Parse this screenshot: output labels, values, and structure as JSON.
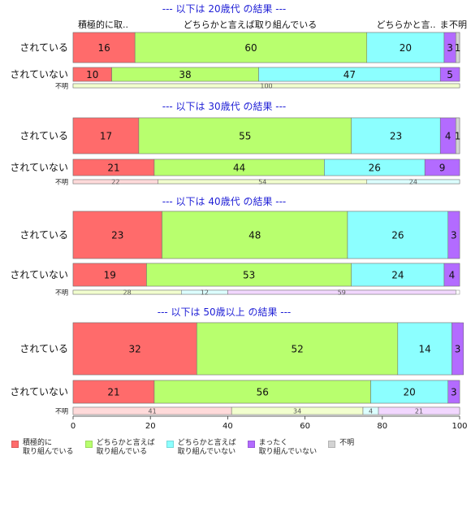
{
  "chart_data": {
    "type": "bar",
    "orientation": "horizontal",
    "stacked": "100%",
    "xlim": [
      0,
      100
    ],
    "xticks": [
      "0",
      "20",
      "40",
      "60",
      "80",
      "100"
    ],
    "categories": [
      "積極的に\n取り組んでいる",
      "どちらかと言えば\n取り組んでいる",
      "どちらかと言えば\n取り組んでいない",
      "まったく\n取り組んでいない",
      "不明"
    ],
    "colors": [
      "#ff6b6b",
      "#b8ff6e",
      "#8cffff",
      "#b36bff",
      "#d3d3d3"
    ],
    "light_colors": [
      "#ffdada",
      "#f2ffce",
      "#dcffff",
      "#f2d7ff",
      "#eeeeee"
    ],
    "legend_position": "bottom",
    "top_category_labels": [
      "積極的に取..",
      "どちらかと言えば取り組んでいる",
      "どちらかと言..",
      "ま",
      "不明"
    ],
    "panels": [
      {
        "title": "--- 以下は 20歳代 の結果 ---",
        "rows": [
          {
            "label": "されている",
            "values": [
              16,
              60,
              20,
              3,
              1
            ]
          },
          {
            "label": "されていない",
            "values": [
              10,
              38,
              47,
              5,
              0
            ]
          },
          {
            "label": "不明",
            "values": [
              0,
              100,
              0,
              0,
              0
            ],
            "small": true
          }
        ]
      },
      {
        "title": "--- 以下は 30歳代 の結果 ---",
        "rows": [
          {
            "label": "されている",
            "values": [
              17,
              55,
              23,
              4,
              1
            ]
          },
          {
            "label": "されていない",
            "values": [
              21,
              44,
              26,
              9,
              0
            ]
          },
          {
            "label": "不明",
            "values": [
              22,
              54,
              24,
              0,
              0
            ],
            "small": true
          }
        ]
      },
      {
        "title": "--- 以下は 40歳代 の結果 ---",
        "rows": [
          {
            "label": "されている",
            "values": [
              23,
              48,
              26,
              3,
              0
            ]
          },
          {
            "label": "されていない",
            "values": [
              19,
              53,
              24,
              4,
              0
            ]
          },
          {
            "label": "不明",
            "values": [
              0,
              28,
              12,
              59,
              0
            ],
            "small": true
          }
        ]
      },
      {
        "title": "--- 以下は 50歳以上 の結果 ---",
        "rows": [
          {
            "label": "されている",
            "values": [
              32,
              52,
              14,
              3,
              0
            ]
          },
          {
            "label": "されていない",
            "values": [
              21,
              56,
              20,
              3,
              0
            ]
          },
          {
            "label": "不明",
            "values": [
              41,
              34,
              4,
              21,
              0
            ],
            "small": true
          }
        ]
      }
    ]
  }
}
